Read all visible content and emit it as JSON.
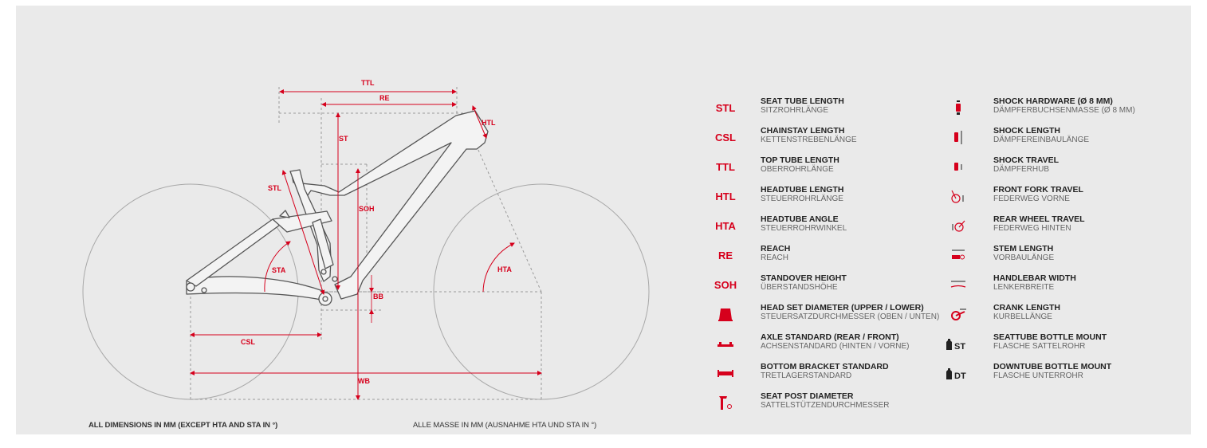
{
  "colors": {
    "accent": "#d6001c",
    "panel": "#eaeaea",
    "frame": "#b5b5b5",
    "text": "#222222"
  },
  "diagram": {
    "labels": {
      "ttl": "TTL",
      "re": "RE",
      "htl": "HTL",
      "st": "ST",
      "stl": "STL",
      "soh": "SOH",
      "sta": "STA",
      "hta": "HTA",
      "bb": "BB",
      "csl": "CSL",
      "wb": "WB"
    }
  },
  "notes": {
    "en": "ALL DIMENSIONS IN MM (EXCEPT HTA AND STA IN °)",
    "de": "ALLE MASSE IN MM (AUSNAHME HTA UND STA IN °)"
  },
  "legend_left": [
    {
      "abbr": "STL",
      "name": "SEAT TUBE LENGTH",
      "sub": "SITZROHRLÄNGE"
    },
    {
      "abbr": "CSL",
      "name": "CHAINSTAY LENGTH",
      "sub": "KETTENSTREBENLÄNGE"
    },
    {
      "abbr": "TTL",
      "name": "TOP TUBE LENGTH",
      "sub": "OBERROHRLÄNGE"
    },
    {
      "abbr": "HTL",
      "name": "HEADTUBE LENGTH",
      "sub": "STEUERROHRLÄNGE"
    },
    {
      "abbr": "HTA",
      "name": "HEADTUBE ANGLE",
      "sub": "STEUERROHRWINKEL"
    },
    {
      "abbr": "RE",
      "name": "REACH",
      "sub": "REACH"
    },
    {
      "abbr": "SOH",
      "name": "STANDOVER HEIGHT",
      "sub": "ÜBERSTANDSHÖHE"
    },
    {
      "icon": "headset-icon",
      "name": "HEAD SET DIAMETER (UPPER / LOWER)",
      "sub": "STEUERSATZDURCHMESSER (OBEN / UNTEN)"
    },
    {
      "icon": "axle-icon",
      "name": "AXLE STANDARD (REAR / FRONT)",
      "sub": "ACHSENSTANDARD (HINTEN / VORNE)"
    },
    {
      "icon": "bottom-bracket-icon",
      "name": "BOTTOM BRACKET STANDARD",
      "sub": "TRETLAGERSTANDARD"
    },
    {
      "icon": "seatpost-icon",
      "name": "SEAT POST DIAMETER",
      "sub": "SATTELSTÜTZENDURCHMESSER"
    }
  ],
  "legend_right": [
    {
      "icon": "shock-hardware-icon",
      "name": "SHOCK HARDWARE (Ø 8 MM)",
      "sub": "DÄMPFERBUCHSENMASSE (Ø 8 MM)"
    },
    {
      "icon": "shock-length-icon",
      "name": "SHOCK LENGTH",
      "sub": "DÄMPFEREINBAULÄNGE"
    },
    {
      "icon": "shock-travel-icon",
      "name": "SHOCK TRAVEL",
      "sub": "DÄMPFERHUB"
    },
    {
      "icon": "fork-travel-icon",
      "name": "FRONT FORK TRAVEL",
      "sub": "FEDERWEG VORNE"
    },
    {
      "icon": "rear-travel-icon",
      "name": "REAR WHEEL TRAVEL",
      "sub": "FEDERWEG HINTEN"
    },
    {
      "icon": "stem-icon",
      "name": "STEM LENGTH",
      "sub": "VORBAULÄNGE"
    },
    {
      "icon": "handlebar-icon",
      "name": "HANDLEBAR WIDTH",
      "sub": "LENKERBREITE"
    },
    {
      "icon": "crank-icon",
      "name": "CRANK LENGTH",
      "sub": "KURBELLÄNGE"
    },
    {
      "icon": "bottle-icon",
      "tag": "ST",
      "name": "SEATTUBE BOTTLE MOUNT",
      "sub": "FLASCHE SATTELROHR"
    },
    {
      "icon": "bottle-icon",
      "tag": "DT",
      "name": "DOWNTUBE BOTTLE MOUNT",
      "sub": "FLASCHE UNTERROHR"
    }
  ]
}
